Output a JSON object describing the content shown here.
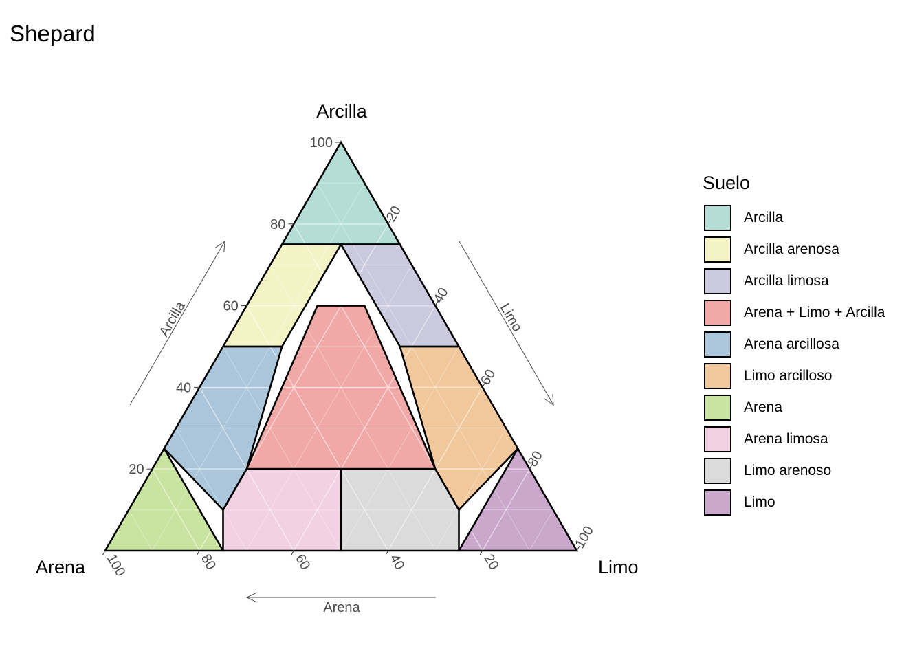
{
  "title": "Shepard",
  "chart_data": {
    "type": "ternary",
    "title": "Shepard",
    "axes": {
      "top": "Arcilla",
      "left": "Arena",
      "right": "Limo"
    },
    "axis_arrow_labels": {
      "left": "Arcilla",
      "right": "Limo",
      "bottom": "Arena"
    },
    "ticks": [
      20,
      40,
      60,
      80,
      100
    ],
    "tick_labels": [
      "20",
      "40",
      "60",
      "80",
      "100"
    ],
    "grid": true,
    "legend": {
      "title": "Suelo",
      "placement": "right",
      "items": [
        {
          "label": "Arcilla",
          "color": "#b3ddd5"
        },
        {
          "label": "Arcilla arenosa",
          "color": "#f4f3c6"
        },
        {
          "label": "Arcilla limosa",
          "color": "#cbc9dd"
        },
        {
          "label": "Arena + Limo + Arcilla",
          "color": "#f0a9a7"
        },
        {
          "label": "Arena arcillosa",
          "color": "#abc6da"
        },
        {
          "label": "Limo arcilloso",
          "color": "#f1c89c"
        },
        {
          "label": "Arena",
          "color": "#c9e3a0"
        },
        {
          "label": "Arena limosa",
          "color": "#f1d1e2"
        },
        {
          "label": "Limo arenoso",
          "color": "#dbdbdb"
        },
        {
          "label": "Limo",
          "color": "#caa8cc"
        }
      ]
    },
    "regions": [
      {
        "name": "Arcilla",
        "points": [
          [
            0,
            100,
            0
          ],
          [
            0,
            75,
            25
          ],
          [
            25,
            75,
            0
          ]
        ]
      },
      {
        "name": "Arcilla arenosa",
        "points": [
          [
            25,
            75,
            0
          ],
          [
            50,
            50,
            0
          ],
          [
            37.5,
            50,
            12.5
          ],
          [
            12.5,
            75,
            12.5
          ]
        ]
      },
      {
        "name": "Arcilla limosa",
        "points": [
          [
            12.5,
            75,
            12.5
          ],
          [
            0,
            75,
            25
          ],
          [
            0,
            50,
            50
          ],
          [
            12.5,
            50,
            37.5
          ]
        ]
      },
      {
        "name": "Arena + Limo + Arcilla",
        "points": [
          [
            25,
            60,
            15
          ],
          [
            15,
            60,
            25
          ],
          [
            20,
            20,
            60
          ],
          [
            60,
            20,
            20
          ]
        ]
      },
      {
        "name": "Arena arcillosa",
        "points": [
          [
            50,
            50,
            0
          ],
          [
            75,
            25,
            0
          ],
          [
            70,
            10,
            20
          ],
          [
            60,
            20,
            20
          ],
          [
            37.5,
            50,
            12.5
          ]
        ]
      },
      {
        "name": "Limo arcilloso",
        "points": [
          [
            0,
            50,
            50
          ],
          [
            0,
            25,
            75
          ],
          [
            20,
            10,
            70
          ],
          [
            20,
            20,
            60
          ],
          [
            12.5,
            50,
            37.5
          ]
        ]
      },
      {
        "name": "Arena",
        "points": [
          [
            75,
            25,
            0
          ],
          [
            100,
            0,
            0
          ],
          [
            75,
            0,
            25
          ]
        ]
      },
      {
        "name": "Arena limosa",
        "points": [
          [
            75,
            0,
            25
          ],
          [
            50,
            0,
            50
          ],
          [
            40,
            20,
            40
          ],
          [
            60,
            20,
            20
          ],
          [
            70,
            10,
            20
          ]
        ]
      },
      {
        "name": "Limo arenoso",
        "points": [
          [
            50,
            0,
            50
          ],
          [
            25,
            0,
            75
          ],
          [
            20,
            10,
            70
          ],
          [
            20,
            20,
            60
          ],
          [
            40,
            20,
            40
          ]
        ]
      },
      {
        "name": "Limo",
        "points": [
          [
            25,
            0,
            75
          ],
          [
            0,
            0,
            100
          ],
          [
            0,
            25,
            75
          ]
        ]
      }
    ]
  }
}
